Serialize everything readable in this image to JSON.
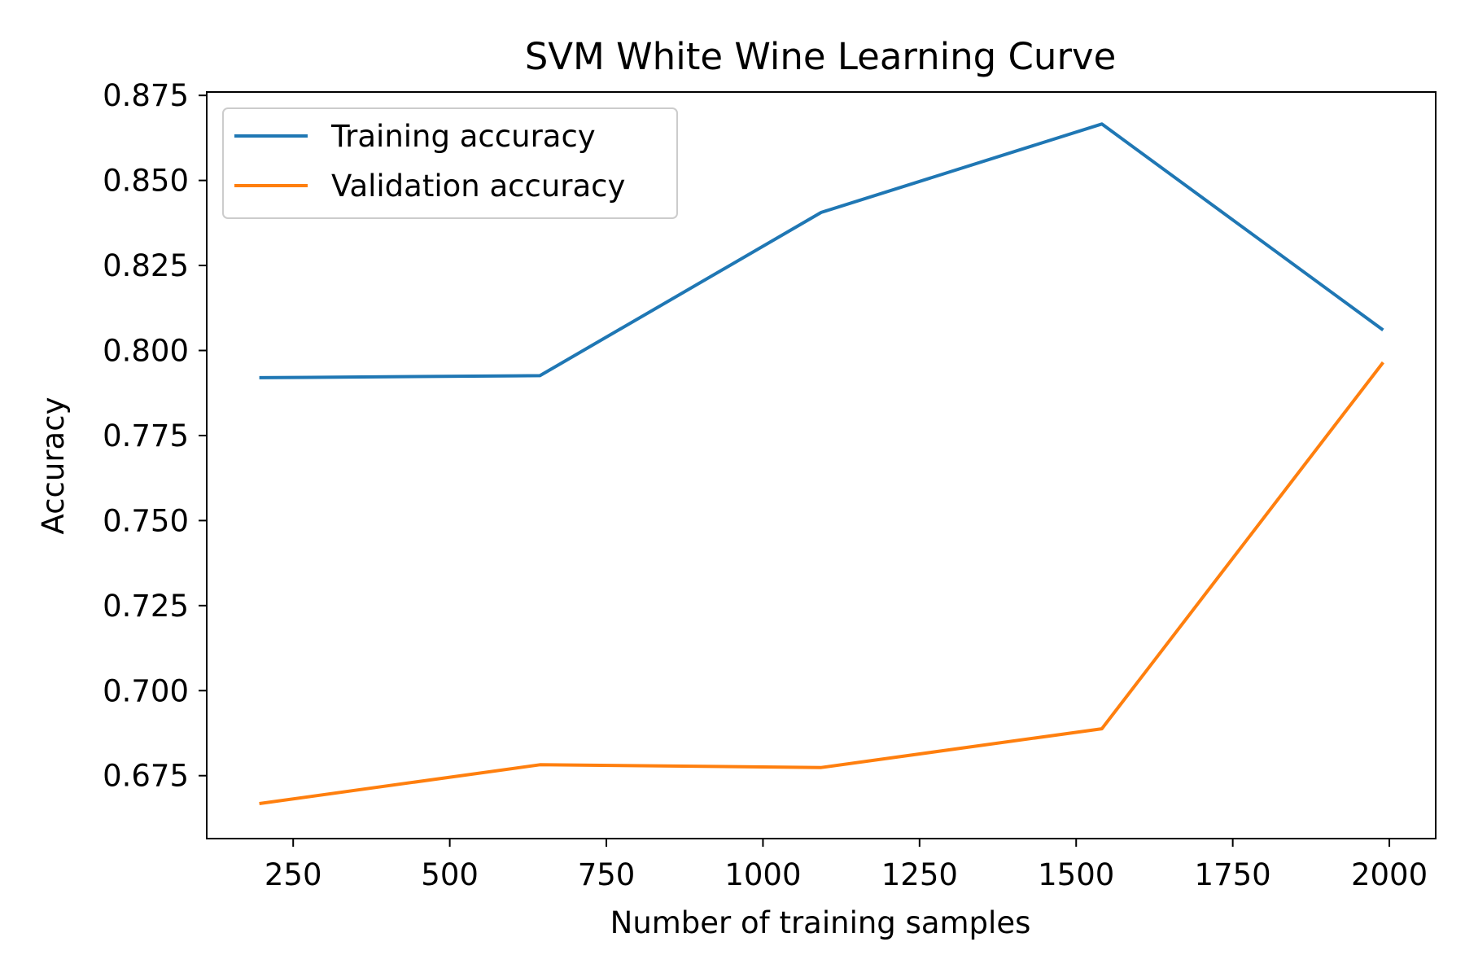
{
  "chart_data": {
    "type": "line",
    "title": "SVM White Wine Learning Curve",
    "xlabel": "Number of training samples",
    "ylabel": "Accuracy",
    "x": [
      196,
      644,
      1093,
      1541,
      1990
    ],
    "xlim": [
      112,
      2074
    ],
    "ylim": [
      0.6565,
      0.876
    ],
    "xticks": [
      250,
      500,
      750,
      1000,
      1250,
      1500,
      1750,
      2000
    ],
    "xtick_labels": [
      "250",
      "500",
      "750",
      "1000",
      "1250",
      "1500",
      "1750",
      "2000"
    ],
    "yticks": [
      0.675,
      0.7,
      0.725,
      0.75,
      0.775,
      0.8,
      0.825,
      0.85,
      0.875
    ],
    "ytick_labels": [
      "0.675",
      "0.700",
      "0.725",
      "0.750",
      "0.775",
      "0.800",
      "0.825",
      "0.850",
      "0.875"
    ],
    "series": [
      {
        "name": "Training accuracy",
        "color": "#1f77b4",
        "values": [
          0.792,
          0.7926,
          0.8406,
          0.8666,
          0.806
        ]
      },
      {
        "name": "Validation accuracy",
        "color": "#ff7f0e",
        "values": [
          0.6668,
          0.6782,
          0.6774,
          0.6888,
          0.7965
        ]
      }
    ],
    "legend": {
      "position": "upper-left"
    },
    "grid": false
  }
}
